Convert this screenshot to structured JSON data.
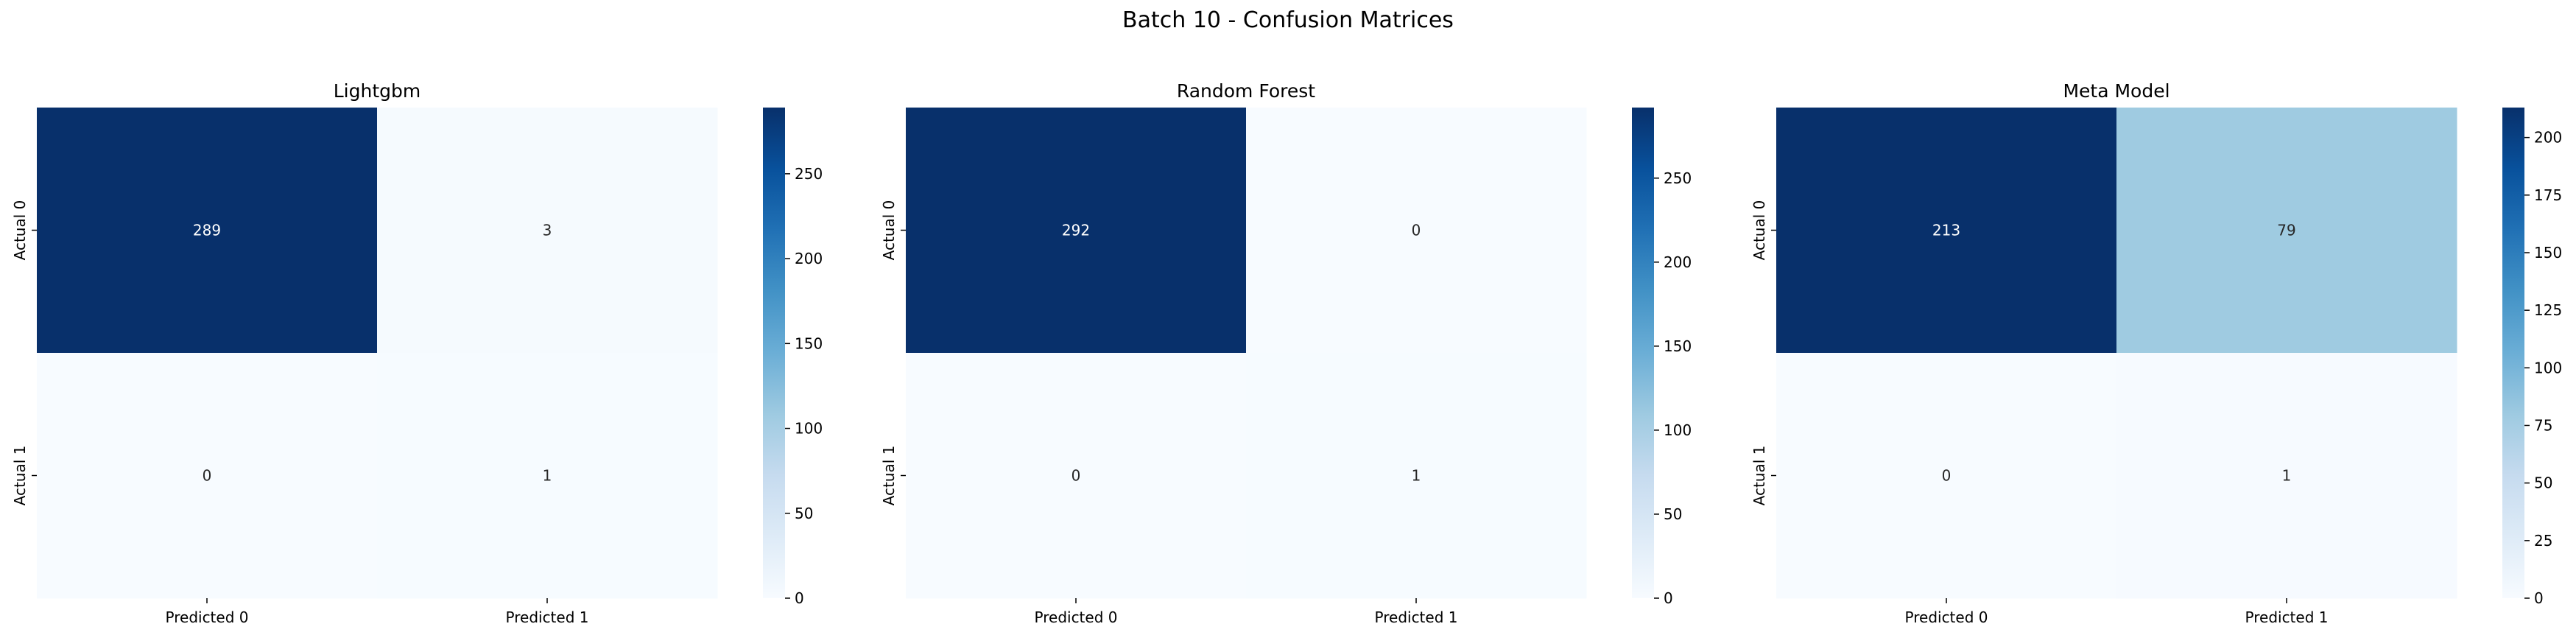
{
  "figure": {
    "title": "Batch 10 - Confusion Matrices"
  },
  "chart_data": [
    {
      "type": "heatmap",
      "title": "Lightgbm",
      "x_categories": [
        "Predicted 0",
        "Predicted 1"
      ],
      "y_categories": [
        "Actual 0",
        "Actual 1"
      ],
      "values": [
        [
          289,
          3
        ],
        [
          0,
          1
        ]
      ],
      "colormap": "Blues",
      "colorbar": {
        "min": 0,
        "max": 289,
        "ticks": [
          0,
          50,
          100,
          150,
          200,
          250
        ]
      },
      "grid": false
    },
    {
      "type": "heatmap",
      "title": "Random Forest",
      "x_categories": [
        "Predicted 0",
        "Predicted 1"
      ],
      "y_categories": [
        "Actual 0",
        "Actual 1"
      ],
      "values": [
        [
          292,
          0
        ],
        [
          0,
          1
        ]
      ],
      "colormap": "Blues",
      "colorbar": {
        "min": 0,
        "max": 292,
        "ticks": [
          0,
          50,
          100,
          150,
          200,
          250
        ]
      },
      "grid": false
    },
    {
      "type": "heatmap",
      "title": "Meta Model",
      "x_categories": [
        "Predicted 0",
        "Predicted 1"
      ],
      "y_categories": [
        "Actual 0",
        "Actual 1"
      ],
      "values": [
        [
          213,
          79
        ],
        [
          0,
          1
        ]
      ],
      "colormap": "Blues",
      "colorbar": {
        "min": 0,
        "max": 213,
        "ticks": [
          0,
          25,
          50,
          75,
          100,
          125,
          150,
          175,
          200
        ]
      },
      "grid": false
    }
  ]
}
